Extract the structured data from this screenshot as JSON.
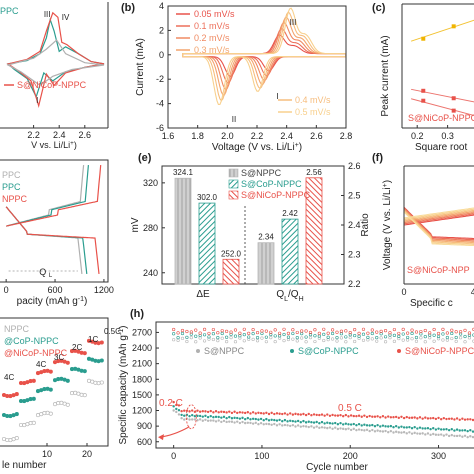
{
  "chart_data": [
    {
      "id": "a",
      "type": "line",
      "label": "",
      "xlabel": "V vs. Li/Li",
      "xlabel_sup": "+",
      "xticks": [
        "2.2",
        "2.4",
        "2.6"
      ],
      "legend": [
        {
          "text": "PPC",
          "color": "#2a9d8f"
        },
        {
          "text": "S@NiCoP-NPPC",
          "color": "#e8524a"
        }
      ],
      "annotations": [
        "III",
        "IV",
        "I"
      ],
      "xlim": [
        2.0,
        2.75
      ],
      "ylim": [
        -2.6,
        2.6
      ],
      "series": [
        {
          "name": "PPC",
          "color": "#2a9d8f",
          "x": [
            2.0,
            2.15,
            2.25,
            2.3,
            2.33,
            2.36,
            2.4,
            2.45,
            2.55,
            2.65,
            2.75,
            2.6,
            2.45,
            2.35,
            2.28,
            2.22,
            2.15,
            2.05,
            2.0
          ],
          "y": [
            0.05,
            0.2,
            0.5,
            1.2,
            2.0,
            1.5,
            0.6,
            0.8,
            0.5,
            0.15,
            0.05,
            -0.1,
            -0.3,
            -0.7,
            -0.35,
            -1.4,
            -0.6,
            -0.2,
            0.05
          ]
        },
        {
          "name": "S@NiCoP-NPPC",
          "color": "#e8524a",
          "x": [
            2.0,
            2.15,
            2.25,
            2.3,
            2.35,
            2.39,
            2.42,
            2.46,
            2.55,
            2.65,
            2.75,
            2.6,
            2.45,
            2.36,
            2.3,
            2.24,
            2.18,
            2.08,
            2.0
          ],
          "y": [
            0.05,
            0.25,
            0.6,
            1.5,
            2.3,
            2.1,
            1.0,
            0.9,
            0.5,
            0.15,
            0.05,
            -0.1,
            -0.35,
            -0.9,
            -0.4,
            -1.8,
            -0.7,
            -0.25,
            0.05
          ]
        },
        {
          "name": "grey",
          "color": "#b0b0b0",
          "x": [
            2.0,
            2.2,
            2.3,
            2.38,
            2.45,
            2.6,
            2.75,
            2.5,
            2.35,
            2.25,
            2.1,
            2.0
          ],
          "y": [
            0.0,
            0.3,
            0.7,
            1.1,
            0.5,
            0.1,
            0.0,
            -0.2,
            -0.5,
            -0.9,
            -0.3,
            0.0
          ]
        }
      ]
    },
    {
      "id": "b",
      "type": "line",
      "label": "(b)",
      "xlabel": "Voltage (V vs. Li/Li",
      "xlabel_sup": "+",
      "xlabel_end": ")",
      "ylabel": "Current (mA)",
      "xlim": [
        1.6,
        2.8
      ],
      "ylim": [
        -6,
        4
      ],
      "xticks": [
        1.6,
        1.8,
        2.0,
        2.2,
        2.4,
        2.6,
        2.8
      ],
      "yticks": [
        -6,
        -4,
        -2,
        0,
        2,
        4
      ],
      "annotations": [
        "III",
        "II",
        "I"
      ],
      "series": [
        {
          "name": "0.05 mV/s",
          "color": "#e8524a",
          "shift": 0.0,
          "amp": 0.45
        },
        {
          "name": "0.1 mV/s",
          "color": "#ec6f5a",
          "shift": 0.015,
          "amp": 0.6
        },
        {
          "name": "0.2 mV/s",
          "color": "#f08a62",
          "shift": 0.03,
          "amp": 0.75
        },
        {
          "name": "0.3 mV/s",
          "color": "#f3a46e",
          "shift": 0.045,
          "amp": 0.88
        },
        {
          "name": "0.4 mV/s",
          "color": "#f6bd7e",
          "shift": 0.06,
          "amp": 1.0
        },
        {
          "name": "0.5 mV/s",
          "color": "#f8d08d",
          "shift": 0.075,
          "amp": 1.1
        }
      ]
    },
    {
      "id": "c",
      "type": "scatter",
      "label": "(c)",
      "ylabel": "Peak current (mA)",
      "xlabel": "Square root",
      "xticks": [
        "0.2",
        "0.3"
      ],
      "legend": [
        {
          "text": "S@NiCoP-NPPC",
          "color": "#e8524a"
        }
      ],
      "series": [
        {
          "name": "upper",
          "color": "#f0b400",
          "x": [
            0.22,
            0.32
          ],
          "y": [
            1.6,
            2.1
          ]
        },
        {
          "name": "lower1",
          "color": "#e8524a",
          "x": [
            0.22,
            0.32
          ],
          "y": [
            -0.5,
            -0.8
          ]
        },
        {
          "name": "lower2",
          "color": "#e8524a",
          "x": [
            0.22,
            0.32
          ],
          "y": [
            -0.9,
            -1.3
          ]
        }
      ]
    },
    {
      "id": "d",
      "type": "line",
      "label": "",
      "xlabel": "pacity (mAh g",
      "xlabel_sup": "-1",
      "xlabel_end": ")",
      "xticks": [
        "0",
        "600",
        "1200"
      ],
      "legend": [
        {
          "text": "PPC",
          "color": "#b0b0b0"
        },
        {
          "text": "PPC",
          "color": "#2a9d8f"
        },
        {
          "text": "NPPC",
          "color": "#e8524a"
        }
      ],
      "annotations": [
        "Q",
        "L"
      ],
      "xlim": [
        0,
        1250
      ],
      "ylim": [
        1.6,
        2.8
      ],
      "series": [
        {
          "name": "grey",
          "color": "#b0b0b0",
          "charge_end": 950,
          "discharge_end": 930
        },
        {
          "name": "teal",
          "color": "#2a9d8f",
          "charge_end": 1010,
          "discharge_end": 990
        },
        {
          "name": "red",
          "color": "#e8524a",
          "charge_end": 1160,
          "discharge_end": 1140
        }
      ]
    },
    {
      "id": "e",
      "type": "bar",
      "label": "(e)",
      "ylabel": "mV",
      "y2label": "Ratio",
      "categories": [
        "ΔE",
        "Q",
        "L",
        "/Q",
        "H"
      ],
      "legend": [
        "S@NPPC",
        "S@CoP-NPPC",
        "S@NiCoP-NPPC"
      ],
      "ylim": [
        230,
        335
      ],
      "yticks": [
        240,
        280,
        320
      ],
      "y2lim": [
        2.2,
        2.6
      ],
      "y2ticks": [
        2.2,
        2.3,
        2.4,
        2.5,
        2.6
      ],
      "deltaE": {
        "values": [
          324.1,
          302.0,
          252.0
        ],
        "labels": [
          "324.1",
          "302.0",
          "252.0"
        ]
      },
      "ratio": {
        "values": [
          2.34,
          2.42,
          2.56
        ],
        "labels": [
          "2.34",
          "2.42",
          "2.56"
        ]
      },
      "colors": [
        "#b8b8b8",
        "#2a9d8f",
        "#e8524a"
      ]
    },
    {
      "id": "f",
      "type": "line",
      "label": "(f)",
      "ylabel": "Voltage (V vs. Li/Li",
      "ylabel_sup": "+",
      "ylabel_end": ")",
      "xlabel": "Specific c",
      "xticks": [
        "0",
        "400"
      ],
      "legend": [
        {
          "text": "S@NiCoP-NPP",
          "color": "#e8524a"
        }
      ],
      "xlim": [
        0,
        560
      ],
      "ylim": [
        1.6,
        2.8
      ]
    },
    {
      "id": "g",
      "type": "scatter",
      "label": "",
      "xlabel": "le number",
      "xticks": [
        "10",
        "20"
      ],
      "legend": [
        {
          "text": "NPPC",
          "color": "#b0b0b0"
        },
        {
          "text": "@CoP-NPPC",
          "color": "#2a9d8f"
        },
        {
          "text": "@NiCoP-NPPC",
          "color": "#e8524a"
        }
      ],
      "rate_labels": [
        "4C",
        "4C",
        "3C",
        "2C",
        "1C",
        "0.5C"
      ]
    },
    {
      "id": "h",
      "type": "scatter",
      "label": "(h)",
      "ylabel": "Specific capacity (mAh g",
      "ylabel_sup": "-1",
      "ylabel_end": ")",
      "xlabel": "Cycle number",
      "xlim": [
        -20,
        390
      ],
      "ylim": [
        480,
        2900
      ],
      "xticks": [
        0,
        100,
        200,
        300
      ],
      "yticks": [
        600,
        900,
        1200,
        1500,
        1800,
        2100,
        2400,
        2700
      ],
      "annotations": [
        "0.2 C",
        "0.5 C"
      ],
      "legend": [
        {
          "text": "S@NPPC",
          "color": "#b0b0b0"
        },
        {
          "text": "S@CoP-NPPC",
          "color": "#2a9d8f"
        },
        {
          "text": "S@NiCoP-NPPC",
          "color": "#e8524a"
        }
      ],
      "series": [
        {
          "name": "S@NPPC",
          "color": "#b8b8b8",
          "start": 1050,
          "end": 640,
          "ce": 2560
        },
        {
          "name": "S@CoP-NPPC",
          "color": "#2a9d8f",
          "start": 1120,
          "end": 760,
          "ce": 2640
        },
        {
          "name": "S@NiCoP-NPPC",
          "color": "#e8524a",
          "start": 1200,
          "end": 1000,
          "ce": 2720
        }
      ]
    }
  ]
}
